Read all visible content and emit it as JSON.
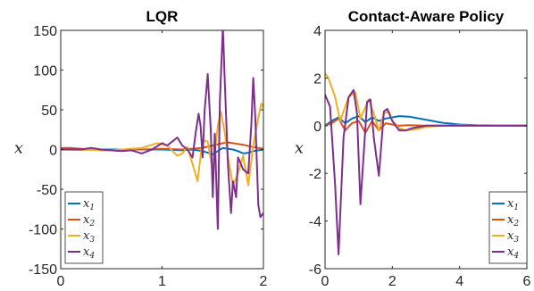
{
  "chart_data": [
    {
      "type": "line",
      "title": "LQR",
      "ylabel": "x",
      "xlim": [
        0,
        2
      ],
      "ylim": [
        -150,
        150
      ],
      "xticks": [
        0,
        1,
        2
      ],
      "xtick_labels": [
        "0",
        "1",
        "2"
      ],
      "yticks": [
        -150,
        -100,
        -50,
        0,
        50,
        100,
        150
      ],
      "ytick_labels": [
        "-150",
        "-100",
        "-50",
        "0",
        "50",
        "100",
        "150"
      ],
      "legend_position": "bottom-left",
      "series": [
        {
          "name": "x",
          "sub": "1",
          "color": "#0072BD",
          "x": [
            0,
            0.5,
            1.0,
            1.2,
            1.3,
            1.4,
            1.45,
            1.5,
            1.55,
            1.6,
            1.65,
            1.7,
            1.75,
            1.8,
            1.85,
            1.9,
            1.95,
            2.0
          ],
          "y": [
            0,
            0,
            0,
            -1,
            0,
            -2,
            -4,
            -6,
            -2,
            2,
            1,
            0,
            -2,
            -5,
            -4,
            -2,
            -1,
            0
          ]
        },
        {
          "name": "x",
          "sub": "2",
          "color": "#D95319",
          "x": [
            0,
            0.1,
            0.2,
            0.3,
            0.4,
            0.5,
            0.6,
            0.8,
            1.0,
            1.2,
            1.4,
            1.5,
            1.6,
            1.65,
            1.7,
            1.8,
            1.9,
            2.0
          ],
          "y": [
            2,
            2,
            1,
            0,
            -1,
            -1,
            0,
            0,
            1,
            0,
            2,
            5,
            8,
            9,
            8,
            6,
            3,
            1
          ]
        },
        {
          "name": "x",
          "sub": "3",
          "color": "#EDB120",
          "x": [
            0,
            0.5,
            0.8,
            0.95,
            1.05,
            1.15,
            1.2,
            1.25,
            1.3,
            1.35,
            1.4,
            1.45,
            1.5,
            1.55,
            1.58,
            1.62,
            1.65,
            1.7,
            1.75,
            1.8,
            1.85,
            1.9,
            1.95,
            1.98,
            2.0
          ],
          "y": [
            0,
            -1,
            2,
            8,
            5,
            -8,
            -5,
            3,
            -18,
            -40,
            12,
            10,
            -28,
            30,
            48,
            20,
            -10,
            -45,
            -30,
            -8,
            -45,
            5,
            40,
            58,
            53
          ]
        },
        {
          "name": "x",
          "sub": "4",
          "color": "#7E2F8E",
          "x": [
            0,
            0.2,
            0.3,
            0.4,
            0.6,
            0.7,
            0.8,
            0.9,
            1.0,
            1.05,
            1.1,
            1.15,
            1.2,
            1.25,
            1.3,
            1.33,
            1.36,
            1.38,
            1.4,
            1.42,
            1.45,
            1.48,
            1.5,
            1.52,
            1.55,
            1.57,
            1.6,
            1.62,
            1.65,
            1.68,
            1.7,
            1.73,
            1.75,
            1.8,
            1.85,
            1.88,
            1.9,
            1.92,
            1.95,
            1.97,
            2.0
          ],
          "y": [
            0,
            0,
            2,
            0,
            -2,
            -1,
            -5,
            0,
            8,
            5,
            10,
            15,
            5,
            0,
            -10,
            20,
            45,
            30,
            -10,
            50,
            95,
            25,
            -60,
            20,
            -100,
            60,
            155,
            80,
            -20,
            -80,
            -40,
            -60,
            -10,
            -25,
            -30,
            30,
            90,
            40,
            -70,
            -85,
            -80
          ]
        }
      ]
    },
    {
      "type": "line",
      "title": "Contact-Aware Policy",
      "ylabel": "x",
      "xlim": [
        0,
        6
      ],
      "ylim": [
        -6,
        4
      ],
      "xticks": [
        0,
        2,
        4,
        6
      ],
      "xtick_labels": [
        "0",
        "2",
        "4",
        "6"
      ],
      "yticks": [
        -6,
        -4,
        -2,
        0,
        2,
        4
      ],
      "ytick_labels": [
        "-6",
        "-4",
        "-2",
        "0",
        "2",
        "4"
      ],
      "legend_position": "bottom-right",
      "series": [
        {
          "name": "x",
          "sub": "1",
          "color": "#0072BD",
          "x": [
            0,
            0.2,
            0.4,
            0.6,
            0.8,
            1.0,
            1.2,
            1.4,
            1.6,
            1.8,
            2.0,
            2.2,
            2.5,
            3.0,
            3.5,
            4.0,
            4.5,
            5.0,
            6.0
          ],
          "y": [
            0,
            0.2,
            0.35,
            0.1,
            0.3,
            0.4,
            0.15,
            0.35,
            0.2,
            0.3,
            0.35,
            0.4,
            0.38,
            0.25,
            0.12,
            0.05,
            0.02,
            0.01,
            0
          ]
        },
        {
          "name": "x",
          "sub": "2",
          "color": "#D95319",
          "x": [
            0,
            0.2,
            0.4,
            0.6,
            0.8,
            1.0,
            1.2,
            1.4,
            1.6,
            1.8,
            2.0,
            2.2,
            2.5,
            3.0,
            4.0,
            6.0
          ],
          "y": [
            0,
            0.1,
            0.3,
            -0.2,
            0.1,
            0.2,
            -0.3,
            0.2,
            -0.2,
            0.1,
            0.05,
            0,
            0.02,
            0,
            0,
            0
          ]
        },
        {
          "name": "x",
          "sub": "3",
          "color": "#EDB120",
          "x": [
            0,
            0.1,
            0.3,
            0.45,
            0.7,
            0.9,
            1.05,
            1.3,
            1.45,
            1.6,
            1.75,
            1.9,
            2.0,
            2.2,
            2.4,
            2.7,
            3.0,
            3.5,
            4.0,
            5.0,
            6.0
          ],
          "y": [
            2.2,
            2.0,
            1.2,
            0.2,
            1.2,
            1.4,
            0.3,
            1.1,
            0.5,
            -0.2,
            0.5,
            0.6,
            0.2,
            -0.1,
            -0.2,
            -0.15,
            -0.05,
            0,
            0.02,
            0,
            0
          ]
        },
        {
          "name": "x",
          "sub": "4",
          "color": "#7E2F8E",
          "x": [
            0,
            0.15,
            0.3,
            0.4,
            0.55,
            0.7,
            0.85,
            0.95,
            1.05,
            1.25,
            1.35,
            1.45,
            1.6,
            1.75,
            1.85,
            2.0,
            2.2,
            2.4,
            2.6,
            3.0,
            6.0
          ],
          "y": [
            1.3,
            0.8,
            -2.5,
            -5.4,
            -0.5,
            1.2,
            1.5,
            0.5,
            -3.3,
            1.0,
            1.1,
            -0.5,
            -2.1,
            0.6,
            0.7,
            0.2,
            -0.2,
            -0.2,
            -0.1,
            0,
            0
          ]
        }
      ]
    }
  ]
}
